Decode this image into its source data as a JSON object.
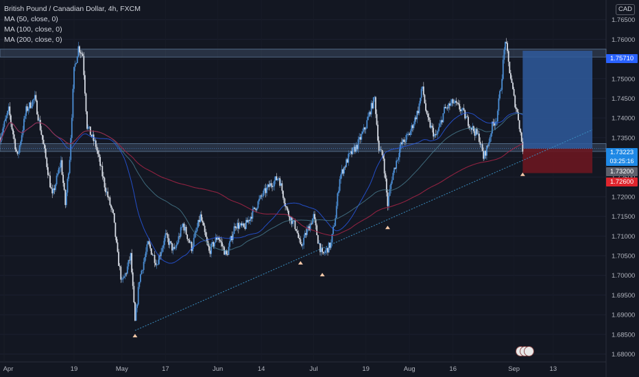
{
  "chart_data": {
    "type": "candlestick",
    "title": "British Pound / Canadian Dollar, 4h, FXCM",
    "currency": "CAD",
    "indicators": [
      {
        "label": "MA (50, close, 0)",
        "color": "#2962ff"
      },
      {
        "label": "MA (100, close, 0)",
        "color": "#4a7f93"
      },
      {
        "label": "MA (200, close, 0)",
        "color": "#a02445"
      }
    ],
    "y_ticks": [
      "1.76500",
      "1.76000",
      "1.75500",
      "1.75000",
      "1.74500",
      "1.74000",
      "1.73500",
      "1.73000",
      "1.72500",
      "1.72000",
      "1.71500",
      "1.71000",
      "1.70500",
      "1.70000",
      "1.69500",
      "1.69000",
      "1.68500",
      "1.68000"
    ],
    "y_range": [
      1.678,
      1.77
    ],
    "x_ticks": [
      "Apr",
      "19",
      "May",
      "17",
      "Jun",
      "14",
      "Jul",
      "19",
      "Aug",
      "16",
      "Sep",
      "13"
    ],
    "price_path": [
      [
        0,
        1.735
      ],
      [
        2,
        1.742
      ],
      [
        4,
        1.73
      ],
      [
        6,
        1.742
      ],
      [
        8,
        1.745
      ],
      [
        10,
        1.733
      ],
      [
        12,
        1.72
      ],
      [
        14,
        1.729
      ],
      [
        15,
        1.718
      ],
      [
        16,
        1.73
      ],
      [
        17,
        1.752
      ],
      [
        18,
        1.758
      ],
      [
        19,
        1.756
      ],
      [
        20,
        1.738
      ],
      [
        22,
        1.733
      ],
      [
        24,
        1.723
      ],
      [
        26,
        1.715
      ],
      [
        27,
        1.705
      ],
      [
        28,
        1.698
      ],
      [
        29,
        1.701
      ],
      [
        30,
        1.705
      ],
      [
        31,
        1.688
      ],
      [
        32,
        1.699
      ],
      [
        34,
        1.708
      ],
      [
        36,
        1.703
      ],
      [
        38,
        1.71
      ],
      [
        40,
        1.706
      ],
      [
        42,
        1.713
      ],
      [
        44,
        1.707
      ],
      [
        46,
        1.715
      ],
      [
        48,
        1.706
      ],
      [
        50,
        1.71
      ],
      [
        52,
        1.705
      ],
      [
        54,
        1.713
      ],
      [
        56,
        1.712
      ],
      [
        58,
        1.716
      ],
      [
        60,
        1.72
      ],
      [
        62,
        1.723
      ],
      [
        64,
        1.725
      ],
      [
        66,
        1.716
      ],
      [
        68,
        1.712
      ],
      [
        69,
        1.707
      ],
      [
        70,
        1.71
      ],
      [
        72,
        1.715
      ],
      [
        73,
        1.709
      ],
      [
        74,
        1.705
      ],
      [
        76,
        1.708
      ],
      [
        77,
        1.715
      ],
      [
        78,
        1.725
      ],
      [
        80,
        1.73
      ],
      [
        82,
        1.733
      ],
      [
        84,
        1.738
      ],
      [
        85,
        1.742
      ],
      [
        86,
        1.745
      ],
      [
        87,
        1.732
      ],
      [
        88,
        1.73
      ],
      [
        89,
        1.718
      ],
      [
        90,
        1.725
      ],
      [
        92,
        1.733
      ],
      [
        94,
        1.736
      ],
      [
        96,
        1.742
      ],
      [
        97,
        1.748
      ],
      [
        98,
        1.74
      ],
      [
        100,
        1.735
      ],
      [
        101,
        1.738
      ],
      [
        102,
        1.742
      ],
      [
        104,
        1.744
      ],
      [
        106,
        1.742
      ],
      [
        108,
        1.738
      ],
      [
        110,
        1.735
      ],
      [
        111,
        1.73
      ],
      [
        112,
        1.733
      ],
      [
        113,
        1.738
      ],
      [
        114,
        1.74
      ],
      [
        115,
        1.748
      ],
      [
        116,
        1.76
      ],
      [
        117,
        1.752
      ],
      [
        118,
        1.745
      ],
      [
        119,
        1.74
      ],
      [
        120,
        1.7322
      ]
    ],
    "swing_low_markers": [
      {
        "t": 31,
        "price": 1.686
      },
      {
        "t": 69,
        "price": 1.7045
      },
      {
        "t": 74,
        "price": 1.7015
      },
      {
        "t": 89,
        "price": 1.7135
      },
      {
        "t": 120,
        "price": 1.727
      }
    ],
    "trendline": {
      "start": [
        31,
        1.686
      ],
      "end": [
        136,
        1.737
      ]
    },
    "zones": [
      {
        "top": 1.7575,
        "bottom": 1.7555
      },
      {
        "top": 1.7335,
        "bottom": 1.7315
      }
    ],
    "position": {
      "entry": 1.73223,
      "target": 1.7571,
      "stop": 1.726,
      "t_start": 120,
      "t_end": 136
    },
    "price_labels": {
      "target": "1.75710",
      "current": "1.73223",
      "countdown": "03:25:16",
      "level": "1.73200",
      "stop": "1.72600"
    },
    "colors": {
      "background": "#131722",
      "up": "#4c8fd6",
      "down": "#d8dde6",
      "target_zone": "#2f5b9c",
      "stop_zone": "#6a1620",
      "trendline": "#3b8fc2",
      "marker": "#f7c9a8"
    }
  }
}
